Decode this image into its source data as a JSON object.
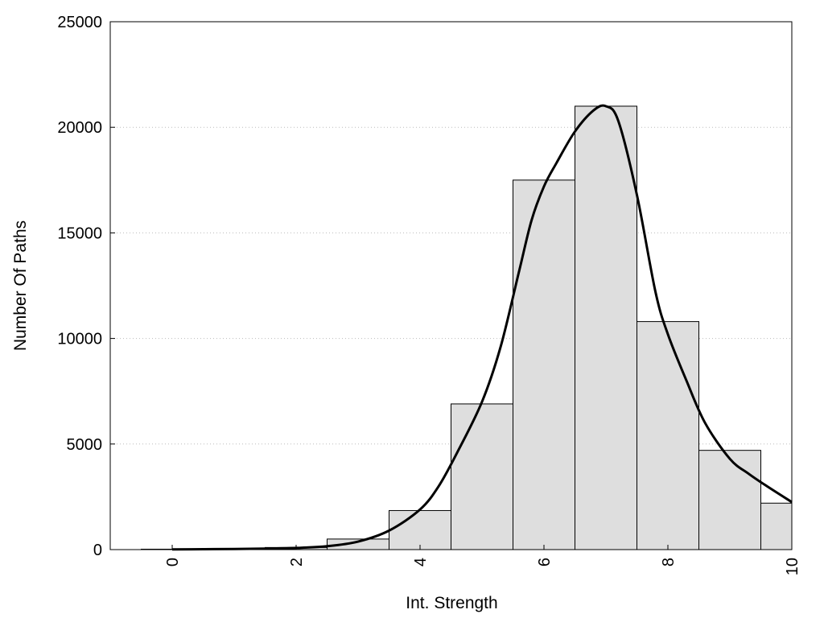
{
  "chart_data": {
    "type": "bar",
    "title": "",
    "xlabel": "Int. Strength",
    "ylabel": "Number Of Paths",
    "xlim": [
      -1,
      10
    ],
    "ylim": [
      0,
      25000
    ],
    "x_ticks": [
      0,
      2,
      4,
      6,
      8,
      10
    ],
    "y_ticks": [
      0,
      5000,
      10000,
      15000,
      20000,
      25000
    ],
    "grid": "horizontal dotted",
    "legend": "none",
    "bin_centers": [
      0,
      1,
      2,
      3,
      4,
      5,
      6,
      7,
      8,
      9,
      10
    ],
    "values": [
      20,
      30,
      100,
      500,
      1850,
      6900,
      17500,
      21000,
      10800,
      4700,
      2200
    ],
    "curve": {
      "x": [
        0,
        0.5,
        1,
        1.5,
        2,
        2.5,
        3,
        3.5,
        4,
        4.3,
        4.6,
        5,
        5.3,
        5.6,
        5.8,
        6,
        6.2,
        6.5,
        6.8,
        7,
        7.2,
        7.5,
        7.8,
        8,
        8.3,
        8.6,
        9,
        9.3,
        9.6,
        10
      ],
      "y": [
        10,
        20,
        30,
        50,
        80,
        160,
        380,
        900,
        1900,
        3000,
        4600,
        7000,
        9600,
        13200,
        15600,
        17200,
        18300,
        19800,
        20800,
        21000,
        20300,
        16800,
        12200,
        10200,
        8000,
        6000,
        4300,
        3600,
        3000,
        2250
      ]
    },
    "colors": {
      "bar_fill": "#dedede",
      "bar_stroke": "#000000",
      "curve": "#000000",
      "grid": "#bbbbbb"
    }
  }
}
